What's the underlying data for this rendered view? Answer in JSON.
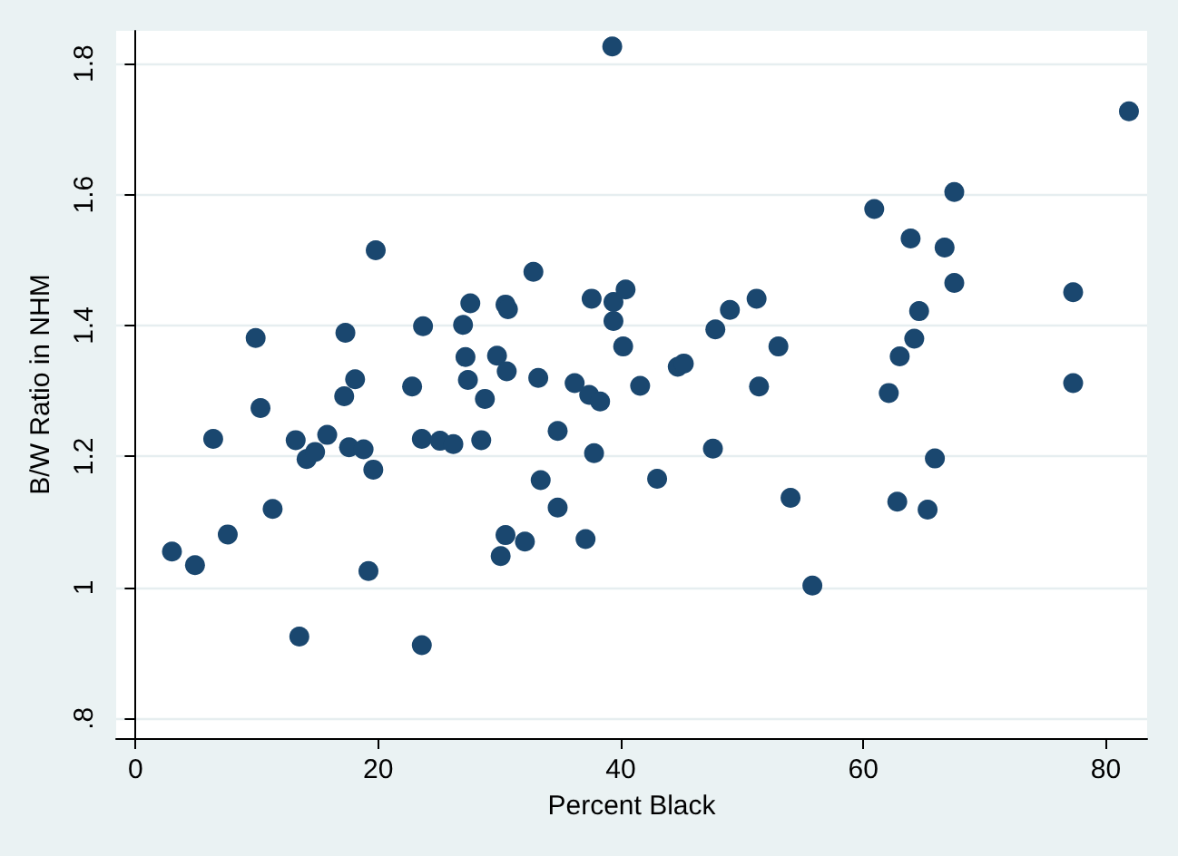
{
  "chart_data": {
    "type": "scatter",
    "xlabel": "Percent Black",
    "ylabel": "B/W Ratio in NHM",
    "marker": "circle",
    "grid": "y",
    "xlim": [
      -1.6,
      83.4
    ],
    "xticks": [
      0,
      20,
      40,
      60,
      80
    ],
    "ylim": [
      0.77,
      1.85
    ],
    "yticks": [
      {
        "value": 0.8,
        "label": ".8"
      },
      1,
      1.2,
      1.4,
      1.6,
      1.8
    ],
    "series": [
      {
        "color": "#1a476f",
        "x": [
          3.0,
          4.9,
          7.6,
          6.4,
          9.9,
          10.3,
          11.3,
          13.5,
          13.2,
          14.1,
          14.8,
          15.8,
          17.3,
          17.2,
          18.1,
          17.6,
          18.8,
          19.6,
          19.2,
          19.8,
          22.8,
          23.7,
          23.6,
          23.6,
          25.1,
          26.2,
          28.5,
          28.8,
          27.4,
          27.2,
          27.0,
          27.6,
          29.8,
          30.6,
          30.5,
          30.7,
          32.8,
          33.2,
          30.5,
          30.1,
          32.1,
          33.4,
          34.8,
          34.8,
          36.2,
          37.1,
          37.4,
          38.3,
          37.8,
          37.6,
          39.4,
          39.4,
          40.4,
          40.2,
          41.6,
          43.0,
          44.7,
          45.2,
          39.3,
          47.6,
          47.8,
          49.0,
          51.2,
          53.0,
          51.4,
          54.0,
          55.8,
          60.9,
          62.1,
          62.8,
          63.0,
          81.9,
          67.5,
          63.9,
          66.7,
          67.5,
          77.3,
          64.6,
          64.2,
          77.3,
          65.9,
          65.3
        ],
        "values": [
          1.055,
          1.034,
          1.081,
          1.227,
          1.381,
          1.274,
          1.12,
          0.925,
          1.225,
          1.196,
          1.207,
          1.233,
          1.389,
          1.292,
          1.318,
          1.214,
          1.211,
          1.18,
          1.025,
          1.515,
          1.307,
          1.399,
          1.227,
          0.912,
          1.224,
          1.219,
          1.225,
          1.288,
          1.317,
          1.352,
          1.401,
          1.434,
          1.354,
          1.33,
          1.432,
          1.425,
          1.482,
          1.32,
          1.08,
          1.048,
          1.07,
          1.164,
          1.239,
          1.122,
          1.312,
          1.074,
          1.294,
          1.284,
          1.205,
          1.441,
          1.436,
          1.407,
          1.455,
          1.368,
          1.308,
          1.166,
          1.337,
          1.342,
          1.826,
          1.212,
          1.394,
          1.424,
          1.441,
          1.368,
          1.307,
          1.137,
          1.003,
          1.578,
          1.297,
          1.131,
          1.353,
          1.727,
          1.604,
          1.533,
          1.519,
          1.465,
          1.451,
          1.422,
          1.38,
          1.312,
          1.197,
          1.119
        ]
      }
    ]
  }
}
